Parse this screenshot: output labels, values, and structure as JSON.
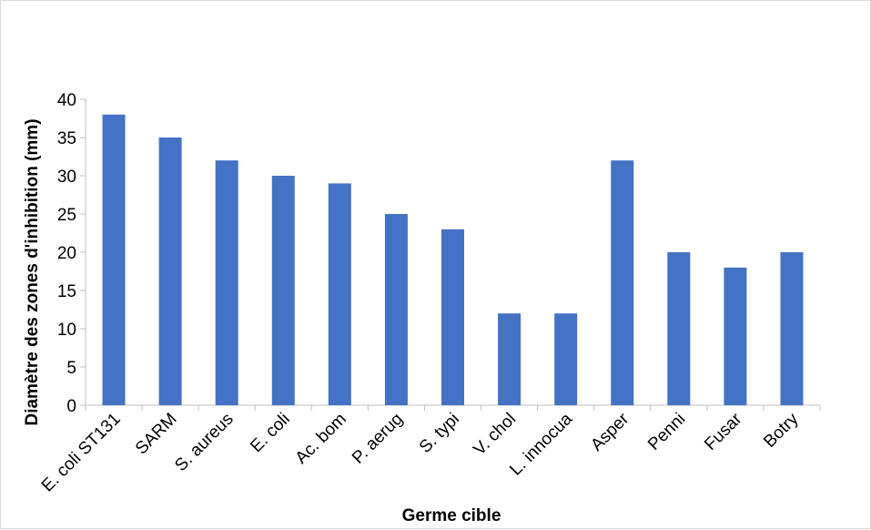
{
  "chart_data": {
    "type": "bar",
    "title": "",
    "xlabel": "Germe cible",
    "ylabel": "Diamètre des zones d'inhibition (mm)",
    "categories": [
      "E. coli ST131",
      "SARM",
      "S. aureus",
      "E. coli",
      "Ac. bom",
      "P. aerug",
      "S. typi",
      "V. chol",
      "L. innocua",
      "Asper",
      "Penni",
      "Fusar",
      "Botry"
    ],
    "values": [
      38,
      35,
      32,
      30,
      29,
      25,
      23,
      12,
      12,
      32,
      20,
      18,
      20
    ],
    "ylim": [
      0,
      40
    ],
    "yticks": [
      0,
      5,
      10,
      15,
      20,
      25,
      30,
      35,
      40
    ],
    "grid": false,
    "legend": "none",
    "bar_color": "#4472c4",
    "axis_color": "#bfbfbf"
  }
}
